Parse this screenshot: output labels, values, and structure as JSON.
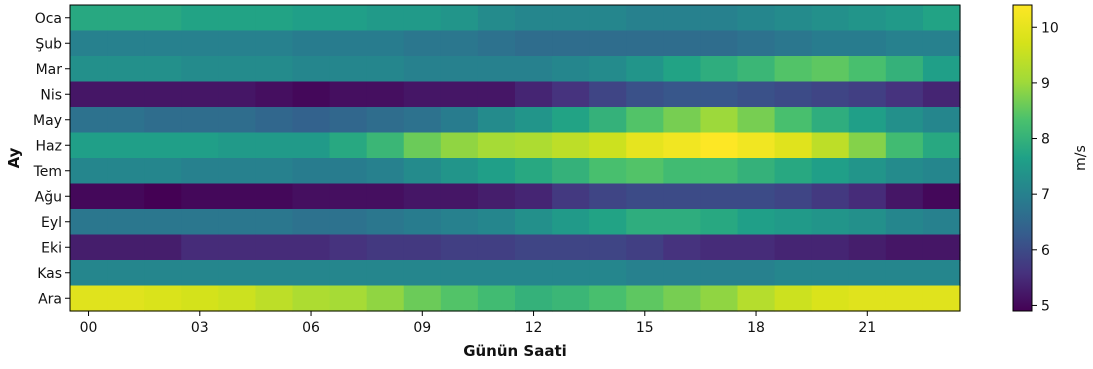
{
  "chart_data": {
    "type": "heatmap",
    "title": "",
    "xlabel": "Günün Saati",
    "ylabel": "Ay",
    "colorbar_label": "m/s",
    "colormap": "viridis",
    "x_categories": [
      "00",
      "01",
      "02",
      "03",
      "04",
      "05",
      "06",
      "07",
      "08",
      "09",
      "10",
      "11",
      "12",
      "13",
      "14",
      "15",
      "16",
      "17",
      "18",
      "19",
      "20",
      "21",
      "22",
      "23"
    ],
    "x_tick_labels": [
      "00",
      "03",
      "06",
      "09",
      "12",
      "15",
      "18",
      "21"
    ],
    "y_categories": [
      "Oca",
      "Şub",
      "Mar",
      "Nis",
      "May",
      "Haz",
      "Tem",
      "Ağu",
      "Eyl",
      "Eki",
      "Kas",
      "Ara"
    ],
    "colorbar_range": [
      4.9,
      10.4
    ],
    "colorbar_ticks": [
      "5",
      "6",
      "7",
      "8",
      "9",
      "10"
    ],
    "values": [
      [
        7.8,
        7.8,
        7.8,
        7.7,
        7.7,
        7.7,
        7.6,
        7.6,
        7.5,
        7.5,
        7.4,
        7.2,
        7.1,
        7.1,
        7.1,
        7.0,
        7.0,
        7.0,
        7.1,
        7.2,
        7.3,
        7.4,
        7.5,
        7.7
      ],
      [
        7.0,
        7.0,
        7.0,
        7.0,
        7.0,
        7.0,
        6.9,
        6.9,
        6.9,
        6.8,
        6.8,
        6.7,
        6.6,
        6.6,
        6.6,
        6.6,
        6.6,
        6.6,
        6.7,
        6.8,
        6.9,
        6.9,
        7.0,
        7.0
      ],
      [
        7.3,
        7.3,
        7.3,
        7.2,
        7.2,
        7.2,
        7.1,
        7.1,
        7.1,
        7.0,
        7.0,
        7.0,
        7.0,
        7.1,
        7.2,
        7.4,
        7.7,
        7.9,
        8.1,
        8.4,
        8.5,
        8.3,
        8.0,
        7.6
      ],
      [
        5.2,
        5.2,
        5.2,
        5.2,
        5.2,
        5.1,
        5.0,
        5.1,
        5.1,
        5.2,
        5.2,
        5.2,
        5.4,
        5.6,
        5.9,
        6.1,
        6.2,
        6.2,
        6.1,
        6.0,
        5.9,
        5.8,
        5.6,
        5.4
      ],
      [
        6.7,
        6.7,
        6.6,
        6.6,
        6.6,
        6.5,
        6.4,
        6.5,
        6.6,
        6.7,
        6.9,
        7.2,
        7.4,
        7.7,
        8.0,
        8.4,
        8.7,
        9.0,
        8.7,
        8.3,
        7.9,
        7.6,
        7.3,
        7.1
      ],
      [
        7.6,
        7.6,
        7.6,
        7.6,
        7.5,
        7.5,
        7.5,
        7.8,
        8.1,
        8.6,
        8.9,
        9.1,
        9.2,
        9.4,
        9.6,
        10.0,
        10.2,
        10.4,
        10.2,
        9.9,
        9.4,
        8.8,
        8.2,
        7.8
      ],
      [
        7.1,
        7.1,
        7.1,
        7.0,
        7.0,
        7.0,
        6.9,
        6.9,
        7.0,
        7.2,
        7.4,
        7.6,
        7.8,
        8.0,
        8.3,
        8.4,
        8.2,
        8.2,
        8.0,
        7.8,
        7.6,
        7.4,
        7.2,
        7.1
      ],
      [
        5.0,
        5.0,
        4.9,
        5.0,
        5.0,
        5.0,
        5.1,
        5.1,
        5.1,
        5.2,
        5.2,
        5.3,
        5.4,
        5.7,
        5.9,
        6.0,
        6.0,
        6.0,
        6.0,
        5.9,
        5.7,
        5.5,
        5.2,
        5.0
      ],
      [
        6.8,
        6.8,
        6.8,
        6.8,
        6.8,
        6.8,
        6.7,
        6.7,
        6.8,
        6.9,
        7.0,
        7.1,
        7.3,
        7.5,
        7.7,
        7.9,
        7.9,
        7.8,
        7.6,
        7.5,
        7.4,
        7.3,
        7.1,
        7.0
      ],
      [
        5.3,
        5.3,
        5.3,
        5.5,
        5.5,
        5.5,
        5.5,
        5.6,
        5.7,
        5.7,
        5.8,
        5.8,
        5.9,
        5.9,
        5.9,
        5.8,
        5.6,
        5.5,
        5.5,
        5.4,
        5.4,
        5.3,
        5.2,
        5.2
      ],
      [
        7.1,
        7.1,
        7.1,
        7.1,
        7.1,
        7.1,
        7.1,
        7.1,
        7.1,
        7.1,
        7.1,
        7.1,
        7.1,
        7.1,
        7.1,
        7.0,
        7.0,
        7.0,
        7.0,
        7.1,
        7.1,
        7.1,
        7.1,
        7.1
      ],
      [
        9.9,
        9.9,
        9.8,
        9.7,
        9.6,
        9.4,
        9.2,
        9.1,
        8.9,
        8.6,
        8.4,
        8.2,
        8.0,
        8.1,
        8.3,
        8.5,
        8.7,
        8.9,
        9.3,
        9.6,
        9.8,
        9.9,
        9.9,
        9.9
      ]
    ]
  }
}
